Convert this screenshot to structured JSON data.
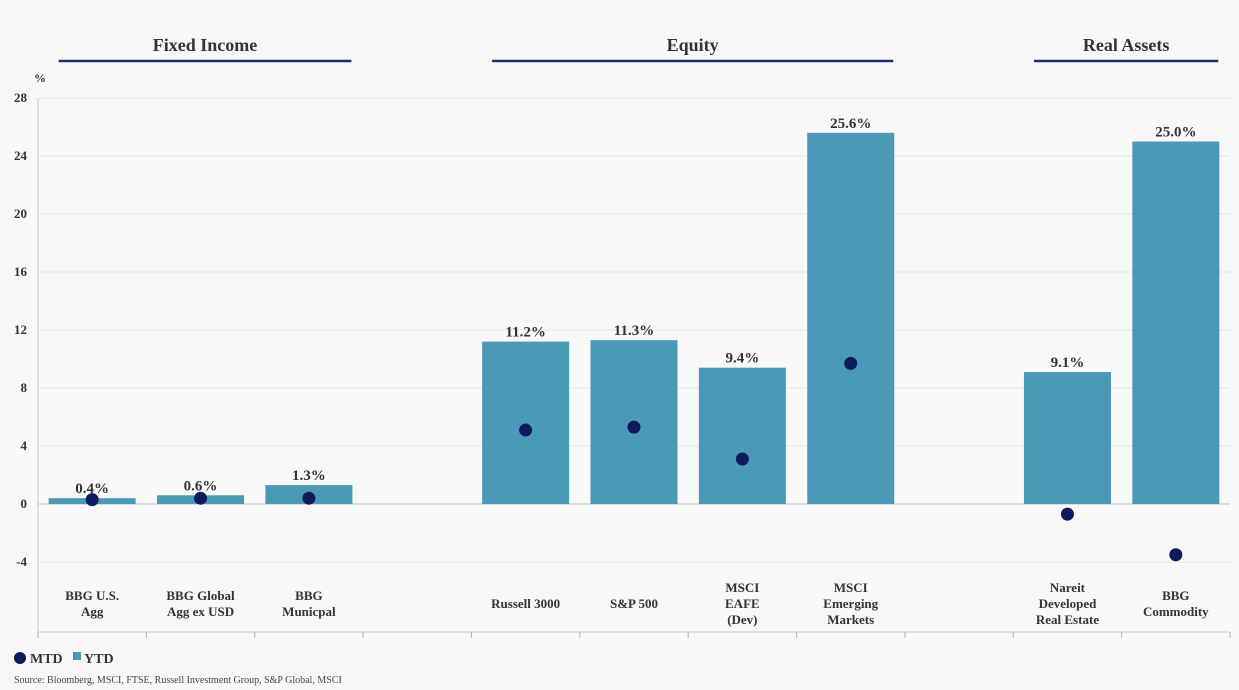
{
  "chart_data": {
    "type": "bar",
    "ylabel": "%",
    "ylim": [
      -4,
      28
    ],
    "yticks": [
      -4,
      0,
      4,
      8,
      12,
      16,
      20,
      24,
      28
    ],
    "grid": true,
    "legend_position": "bottom-left",
    "groups": [
      {
        "name": "Fixed Income",
        "categories": [
          "BBG U.S. Agg",
          "BBG Global Agg ex USD",
          "BBG Municpal"
        ]
      },
      {
        "name": "Equity",
        "categories": [
          "Russell 3000",
          "S&P 500",
          "MSCI EAFE (Dev)",
          "MSCI Emerging Markets"
        ]
      },
      {
        "name": "Real Assets",
        "categories": [
          "Nareit Developed Real Estate",
          "BBG Commodity"
        ]
      }
    ],
    "categories": [
      {
        "label": [
          "BBG U.S.",
          "Agg"
        ],
        "slot": 0
      },
      {
        "label": [
          "BBG Global",
          "Agg ex USD"
        ],
        "slot": 1
      },
      {
        "label": [
          "BBG",
          "Municpal"
        ],
        "slot": 2
      },
      {
        "label": [
          "Russell 3000"
        ],
        "slot": 4
      },
      {
        "label": [
          "S&P 500"
        ],
        "slot": 5
      },
      {
        "label": [
          "MSCI",
          "EAFE",
          "(Dev)"
        ],
        "slot": 6
      },
      {
        "label": [
          "MSCI",
          "Emerging",
          "Markets"
        ],
        "slot": 7
      },
      {
        "label": [
          "Nareit",
          "Developed",
          "Real Estate"
        ],
        "slot": 9
      },
      {
        "label": [
          "BBG",
          "Commodity"
        ],
        "slot": 10
      }
    ],
    "series": [
      {
        "name": "YTD",
        "type": "bar",
        "values": [
          0.4,
          0.6,
          1.3,
          11.2,
          11.3,
          9.4,
          25.6,
          9.1,
          25.0
        ],
        "labels": [
          "0.4%",
          "0.6%",
          "1.3%",
          "11.2%",
          "11.3%",
          "9.4%",
          "25.6%",
          "9.1%",
          "25.0%"
        ]
      },
      {
        "name": "MTD",
        "type": "scatter",
        "values": [
          0.3,
          0.4,
          0.4,
          5.1,
          5.3,
          3.1,
          9.7,
          -0.7,
          -3.5
        ]
      }
    ],
    "colors": {
      "ytd": "#4a99b6",
      "mtd": "#0d1b5e",
      "group_rule": "#1f2f6e"
    },
    "source": "Source: Bloomberg, MSCI, FTSE, Russell Investment Group, S&P Global, MSCI"
  }
}
